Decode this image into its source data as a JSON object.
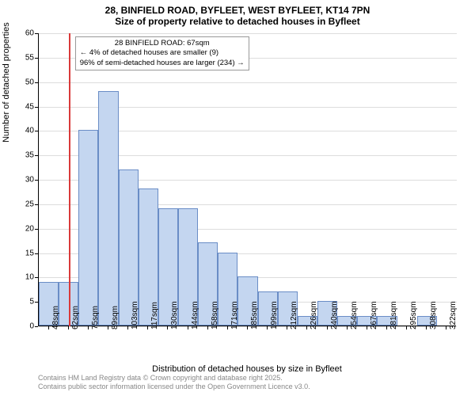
{
  "title": {
    "line1": "28, BINFIELD ROAD, BYFLEET, WEST BYFLEET, KT14 7PN",
    "line2": "Size of property relative to detached houses in Byfleet"
  },
  "chart": {
    "type": "bar",
    "ylabel": "Number of detached properties",
    "xlabel": "Distribution of detached houses by size in Byfleet",
    "ylim": [
      0,
      60
    ],
    "ytick_step": 5,
    "yticks": [
      0,
      5,
      10,
      15,
      20,
      25,
      30,
      35,
      40,
      45,
      50,
      55,
      60
    ],
    "bar_fill": "#c4d6f0",
    "bar_stroke": "#6a8dc6",
    "grid_color": "#dddddd",
    "background_color": "#ffffff",
    "ref_line_color": "#d93a3a",
    "ref_line_x_index": 1.5,
    "bars": [
      {
        "label": "48sqm",
        "value": 9
      },
      {
        "label": "62sqm",
        "value": 9
      },
      {
        "label": "75sqm",
        "value": 40
      },
      {
        "label": "89sqm",
        "value": 48
      },
      {
        "label": "103sqm",
        "value": 32
      },
      {
        "label": "117sqm",
        "value": 28
      },
      {
        "label": "130sqm",
        "value": 24
      },
      {
        "label": "144sqm",
        "value": 24
      },
      {
        "label": "158sqm",
        "value": 17
      },
      {
        "label": "171sqm",
        "value": 15
      },
      {
        "label": "185sqm",
        "value": 10
      },
      {
        "label": "199sqm",
        "value": 7
      },
      {
        "label": "212sqm",
        "value": 7
      },
      {
        "label": "226sqm",
        "value": 2
      },
      {
        "label": "240sqm",
        "value": 5
      },
      {
        "label": "254sqm",
        "value": 2
      },
      {
        "label": "267sqm",
        "value": 2
      },
      {
        "label": "281sqm",
        "value": 2
      },
      {
        "label": "295sqm",
        "value": 0
      },
      {
        "label": "308sqm",
        "value": 2
      },
      {
        "label": "322sqm",
        "value": 0
      }
    ],
    "annotation": {
      "line1": "28 BINFIELD ROAD: 67sqm",
      "line2": "← 4% of detached houses are smaller (9)",
      "line3": "96% of semi-detached houses are larger (234) →"
    }
  },
  "footer": {
    "line1": "Contains HM Land Registry data © Crown copyright and database right 2025.",
    "line2": "Contains public sector information licensed under the Open Government Licence v3.0."
  }
}
